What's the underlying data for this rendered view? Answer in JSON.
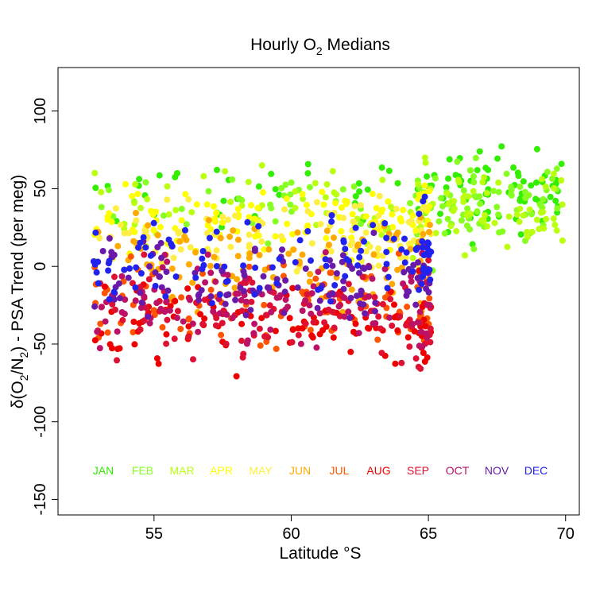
{
  "chart_data": {
    "type": "scatter",
    "title_main": "Hourly O",
    "title_sub": "2",
    "title_rest": " Medians",
    "xlabel": "Latitude °S",
    "ylabel_parts": [
      "δ(O",
      "2",
      "/N",
      "2",
      ") - PSA Trend (per meg)"
    ],
    "xlim": [
      51.5,
      70.5
    ],
    "ylim": [
      -160,
      128
    ],
    "xticks": [
      55,
      60,
      65,
      70
    ],
    "xtick_labels": [
      "55",
      "60",
      "65",
      "70"
    ],
    "yticks": [
      -150,
      -100,
      -50,
      0,
      50,
      100
    ],
    "ytick_labels": [
      "-150",
      "-100",
      "-50",
      "0",
      "50",
      "100"
    ],
    "grid": false,
    "legend_position": "bottom",
    "months": [
      {
        "label": "JAN",
        "color": "#33ee00",
        "x": 54.5,
        "ybase": 48,
        "spread": 13
      },
      {
        "label": "FEB",
        "color": "#88ff22",
        "x": 56.5,
        "ybase": 42,
        "spread": 12
      },
      {
        "label": "MAR",
        "color": "#bbff11",
        "x": 58.5,
        "ybase": 38,
        "spread": 12
      },
      {
        "label": "APR",
        "color": "#ffff00",
        "x": 59.5,
        "ybase": 28,
        "spread": 12
      },
      {
        "label": "MAY",
        "color": "#ffee44",
        "x": 60.0,
        "ybase": 20,
        "spread": 12
      },
      {
        "label": "JUN",
        "color": "#ffaa00",
        "x": 60.5,
        "ybase": 5,
        "spread": 14
      },
      {
        "label": "JUL",
        "color": "#ff5500",
        "x": 60.0,
        "ybase": -25,
        "spread": 14
      },
      {
        "label": "AUG",
        "color": "#ee0000",
        "x": 59.0,
        "ybase": -35,
        "spread": 14
      },
      {
        "label": "SEP",
        "color": "#dd1133",
        "x": 59.0,
        "ybase": -30,
        "spread": 14
      },
      {
        "label": "OCT",
        "color": "#bb1166",
        "x": 59.0,
        "ybase": -20,
        "spread": 14
      },
      {
        "label": "NOV",
        "color": "#6a1aaa",
        "x": 59.0,
        "ybase": -10,
        "spread": 13
      },
      {
        "label": "DEC",
        "color": "#2222ee",
        "x": 59.0,
        "ybase": 5,
        "spread": 13
      }
    ]
  }
}
